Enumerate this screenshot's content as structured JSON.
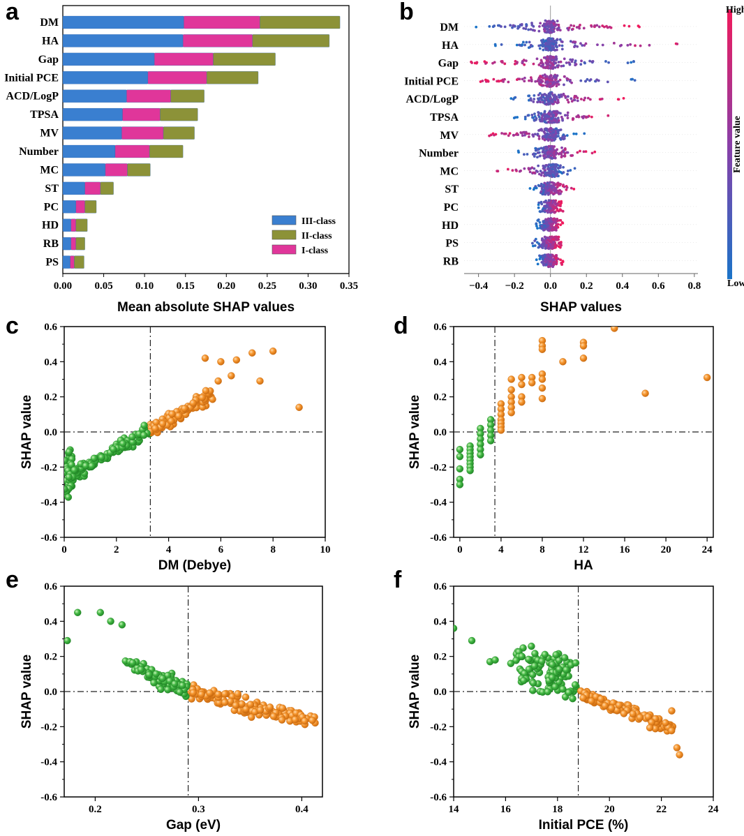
{
  "panel_letters": [
    "a",
    "b",
    "c",
    "d",
    "e",
    "f"
  ],
  "colors": {
    "iii_class": "#3a7fd0",
    "ii_class": "#8c9238",
    "i_class": "#e0369a",
    "orange": "#f08a24",
    "green": "#3fb042",
    "cmap_high": "#f01a5c",
    "cmap_mid": "#8a3fa8",
    "cmap_low": "#1a74c8"
  },
  "chart_data": [
    {
      "id": "a",
      "type": "bar",
      "stacked": true,
      "orientation": "horizontal",
      "categories": [
        "DM",
        "HA",
        "Gap",
        "Initial PCE",
        "ACD/LogP",
        "TPSA",
        "MV",
        "Number",
        "MC",
        "ST",
        "PC",
        "HD",
        "RB",
        "PS"
      ],
      "series": [
        {
          "name": "III-class",
          "values": [
            0.148,
            0.147,
            0.112,
            0.104,
            0.078,
            0.073,
            0.072,
            0.064,
            0.052,
            0.027,
            0.016,
            0.01,
            0.01,
            0.009
          ]
        },
        {
          "name": "I-class",
          "values": [
            0.093,
            0.085,
            0.072,
            0.072,
            0.054,
            0.046,
            0.051,
            0.042,
            0.027,
            0.019,
            0.011,
            0.006,
            0.006,
            0.005
          ]
        },
        {
          "name": "II-class",
          "values": [
            0.098,
            0.094,
            0.076,
            0.063,
            0.041,
            0.046,
            0.038,
            0.041,
            0.028,
            0.016,
            0.014,
            0.014,
            0.011,
            0.012
          ]
        }
      ],
      "legend": [
        "III-class",
        "II-class",
        "I-class"
      ],
      "xlabel": "Mean absolute SHAP values",
      "xlim": [
        0,
        0.35
      ],
      "xticks": [
        "0.00",
        "0.05",
        "0.10",
        "0.15",
        "0.20",
        "0.25",
        "0.30",
        "0.35"
      ]
    },
    {
      "id": "b",
      "type": "scatter",
      "subtype": "beeswarm",
      "categories": [
        "DM",
        "HA",
        "Gap",
        "Initial PCE",
        "ACD/LogP",
        "TPSA",
        "MV",
        "Number",
        "MC",
        "ST",
        "PC",
        "HD",
        "PS",
        "RB"
      ],
      "ranges": [
        [
          -0.42,
          0.5
        ],
        [
          -0.32,
          0.79
        ],
        [
          -0.45,
          0.5
        ],
        [
          -0.42,
          0.55
        ],
        [
          -0.25,
          0.43
        ],
        [
          -0.21,
          0.33
        ],
        [
          -0.36,
          0.2
        ],
        [
          -0.19,
          0.25
        ],
        [
          -0.3,
          0.14
        ],
        [
          -0.12,
          0.14
        ],
        [
          -0.08,
          0.07
        ],
        [
          -0.08,
          0.07
        ],
        [
          -0.11,
          0.06
        ],
        [
          -0.08,
          0.07
        ]
      ],
      "high_side": [
        "right",
        "right",
        "left",
        "left",
        "right",
        "right",
        "left",
        "right",
        "left",
        "right",
        "right",
        "right",
        "right",
        "right"
      ],
      "xlabel": "SHAP values",
      "xlim": [
        -0.48,
        0.82
      ],
      "xticks": [
        "−0.4",
        "−0.2",
        "0.0",
        "0.2",
        "0.4",
        "0.6",
        "0.8"
      ],
      "colorbar": {
        "high": "High",
        "low": "Low",
        "label": "Feature value"
      }
    },
    {
      "id": "c",
      "type": "scatter",
      "xlabel": "DM (Debye)",
      "ylabel": "SHAP value",
      "xlim": [
        0,
        10
      ],
      "ylim": [
        -0.6,
        0.6
      ],
      "xticks": [
        "0",
        "2",
        "4",
        "6",
        "8",
        "10"
      ],
      "yticks": [
        "-0.6",
        "-0.4",
        "-0.2",
        "0.0",
        "0.2",
        "0.4",
        "0.6"
      ],
      "threshold_x": 3.3,
      "outliers": [
        [
          7.5,
          0.29
        ],
        [
          8.0,
          0.46
        ],
        [
          9.0,
          0.14
        ],
        [
          7.2,
          0.45
        ],
        [
          6.6,
          0.41
        ],
        [
          6.4,
          0.32
        ],
        [
          6.0,
          0.4
        ],
        [
          5.4,
          0.42
        ],
        [
          5.9,
          0.29
        ]
      ]
    },
    {
      "id": "d",
      "type": "scatter",
      "xlabel": "HA",
      "ylabel": "SHAP value",
      "xlim": [
        -0.6,
        24.6
      ],
      "ylim": [
        -0.6,
        0.6
      ],
      "xticks": [
        "0",
        "4",
        "8",
        "12",
        "16",
        "20",
        "24"
      ],
      "yticks": [
        "-0.6",
        "-0.4",
        "-0.2",
        "0.0",
        "0.2",
        "0.4",
        "0.6"
      ],
      "threshold_x": 3.4,
      "points": [
        [
          0,
          -0.1
        ],
        [
          0,
          -0.14
        ],
        [
          0,
          -0.21
        ],
        [
          0,
          -0.27
        ],
        [
          0,
          -0.3
        ],
        [
          1,
          -0.08
        ],
        [
          1,
          -0.1
        ],
        [
          1,
          -0.12
        ],
        [
          1,
          -0.14
        ],
        [
          1,
          -0.16
        ],
        [
          1,
          -0.18
        ],
        [
          1,
          -0.2
        ],
        [
          1,
          -0.22
        ],
        [
          2,
          0.02
        ],
        [
          2,
          -0.01
        ],
        [
          2,
          -0.04
        ],
        [
          2,
          -0.07
        ],
        [
          2,
          -0.1
        ],
        [
          2,
          -0.13
        ],
        [
          3,
          0.07
        ],
        [
          3,
          0.04
        ],
        [
          3,
          0.01
        ],
        [
          3,
          -0.02
        ],
        [
          3,
          -0.05
        ],
        [
          4,
          0.16
        ],
        [
          4,
          0.13
        ],
        [
          4,
          0.1
        ],
        [
          4,
          0.07
        ],
        [
          4,
          0.05
        ],
        [
          4,
          0.03
        ],
        [
          4,
          0.01
        ],
        [
          5,
          0.3
        ],
        [
          5,
          0.24
        ],
        [
          5,
          0.2
        ],
        [
          5,
          0.17
        ],
        [
          5,
          0.14
        ],
        [
          5,
          0.11
        ],
        [
          6,
          0.31
        ],
        [
          6,
          0.27
        ],
        [
          6,
          0.2
        ],
        [
          6,
          0.17
        ],
        [
          7,
          0.31
        ],
        [
          7,
          0.28
        ],
        [
          8,
          0.52
        ],
        [
          8,
          0.49
        ],
        [
          8,
          0.47
        ],
        [
          8,
          0.33
        ],
        [
          8,
          0.3
        ],
        [
          8,
          0.25
        ],
        [
          8,
          0.19
        ],
        [
          10,
          0.4
        ],
        [
          12,
          0.51
        ],
        [
          12,
          0.49
        ],
        [
          12,
          0.42
        ],
        [
          15,
          0.59
        ],
        [
          18,
          0.22
        ],
        [
          24,
          0.31
        ]
      ]
    },
    {
      "id": "e",
      "type": "scatter",
      "xlabel": "Gap (eV)",
      "ylabel": "SHAP value",
      "xlim": [
        0.17,
        0.42
      ],
      "ylim": [
        -0.6,
        0.6
      ],
      "xticks": [
        "0.2",
        "0.3",
        "0.4"
      ],
      "yticks": [
        "-0.6",
        "-0.4",
        "-0.2",
        "0.0",
        "0.2",
        "0.4",
        "0.6"
      ],
      "threshold_x": 0.29,
      "outliers": [
        [
          0.173,
          0.29
        ],
        [
          0.183,
          0.45
        ],
        [
          0.205,
          0.45
        ],
        [
          0.215,
          0.4
        ],
        [
          0.226,
          0.38
        ]
      ]
    },
    {
      "id": "f",
      "type": "scatter",
      "xlabel": "Initial PCE (%)",
      "ylabel": "SHAP value",
      "xlim": [
        14,
        24
      ],
      "ylim": [
        -0.6,
        0.6
      ],
      "xticks": [
        "14",
        "16",
        "18",
        "20",
        "22",
        "24"
      ],
      "yticks": [
        "-0.6",
        "-0.4",
        "-0.2",
        "0.0",
        "0.2",
        "0.4",
        "0.6"
      ],
      "threshold_x": 18.8,
      "outliers": [
        [
          14.0,
          0.36
        ],
        [
          14.7,
          0.29
        ],
        [
          15.4,
          0.17
        ],
        [
          15.6,
          0.18
        ],
        [
          16.2,
          0.16
        ],
        [
          22.6,
          -0.32
        ],
        [
          22.7,
          -0.36
        ],
        [
          22.4,
          -0.11
        ]
      ]
    }
  ]
}
